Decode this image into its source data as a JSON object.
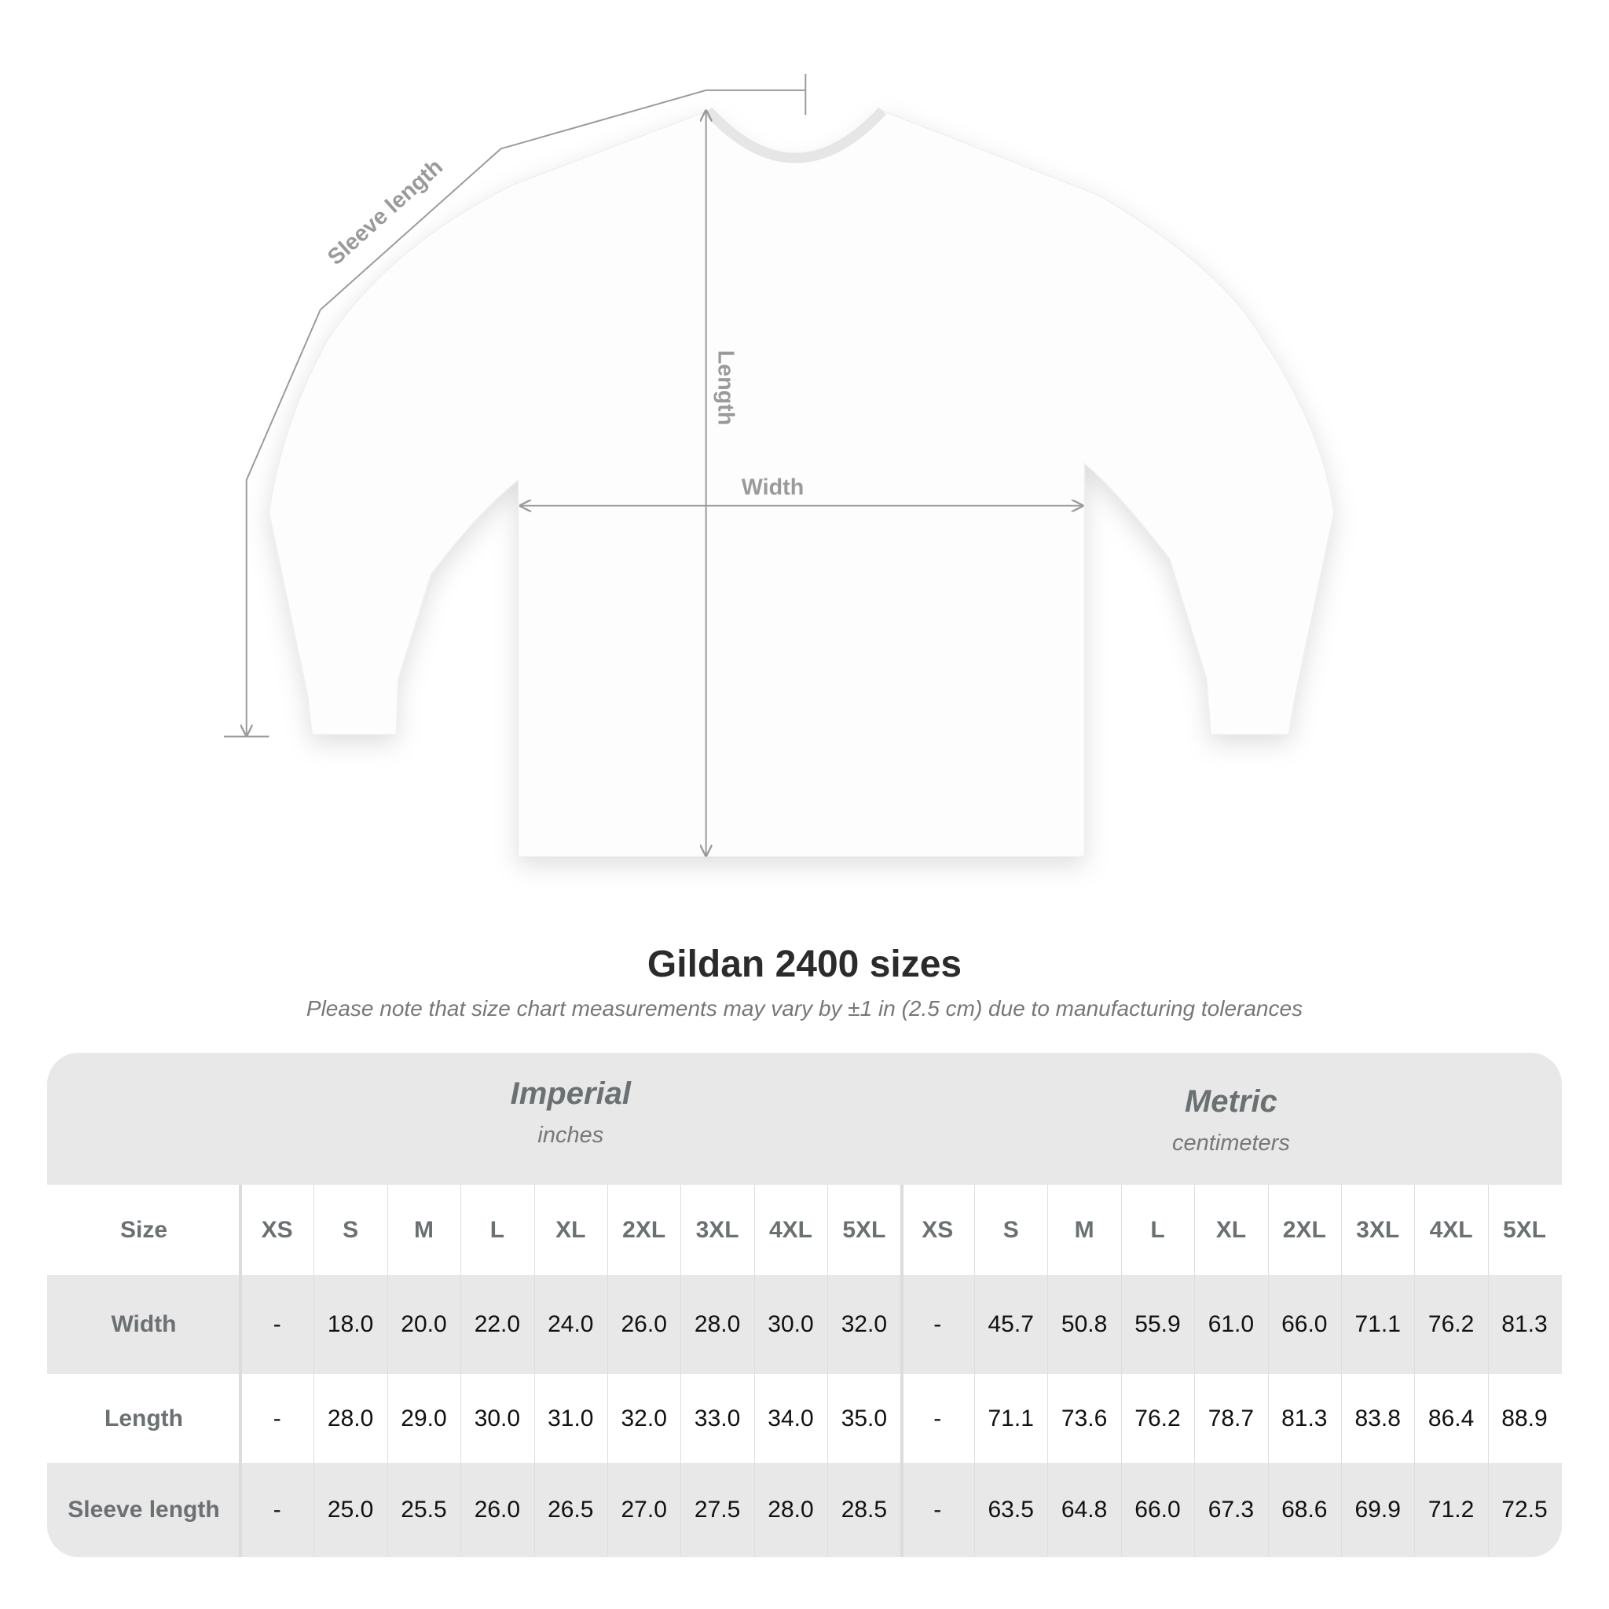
{
  "diagram": {
    "labels": {
      "sleeve_length": "Sleeve length",
      "length": "Length",
      "width": "Width"
    },
    "line_color": "#9a9a9a"
  },
  "title": "Gildan 2400 sizes",
  "subtitle": "Please note that size chart measurements may vary by ±1 in (2.5 cm) due to manufacturing tolerances",
  "table": {
    "groups": [
      {
        "name": "Imperial",
        "unit": "inches"
      },
      {
        "name": "Metric",
        "unit": "centimeters"
      }
    ],
    "size_label": "Size",
    "sizes": [
      "XS",
      "S",
      "M",
      "L",
      "XL",
      "2XL",
      "3XL",
      "4XL",
      "5XL"
    ],
    "rows": [
      {
        "label": "Width",
        "imperial": [
          "-",
          "18.0",
          "20.0",
          "22.0",
          "24.0",
          "26.0",
          "28.0",
          "30.0",
          "32.0"
        ],
        "metric": [
          "-",
          "45.7",
          "50.8",
          "55.9",
          "61.0",
          "66.0",
          "71.1",
          "76.2",
          "81.3"
        ]
      },
      {
        "label": "Length",
        "imperial": [
          "-",
          "28.0",
          "29.0",
          "30.0",
          "31.0",
          "32.0",
          "33.0",
          "34.0",
          "35.0"
        ],
        "metric": [
          "-",
          "71.1",
          "73.6",
          "76.2",
          "78.7",
          "81.3",
          "83.8",
          "86.4",
          "88.9"
        ]
      },
      {
        "label": "Sleeve length",
        "imperial": [
          "-",
          "25.0",
          "25.5",
          "26.0",
          "26.5",
          "27.0",
          "27.5",
          "28.0",
          "28.5"
        ],
        "metric": [
          "-",
          "63.5",
          "64.8",
          "66.0",
          "67.3",
          "68.6",
          "69.9",
          "71.2",
          "72.5"
        ]
      }
    ],
    "colors": {
      "band": "#e8e8e8",
      "label_text": "#6b7072",
      "value_text": "#111111"
    }
  }
}
